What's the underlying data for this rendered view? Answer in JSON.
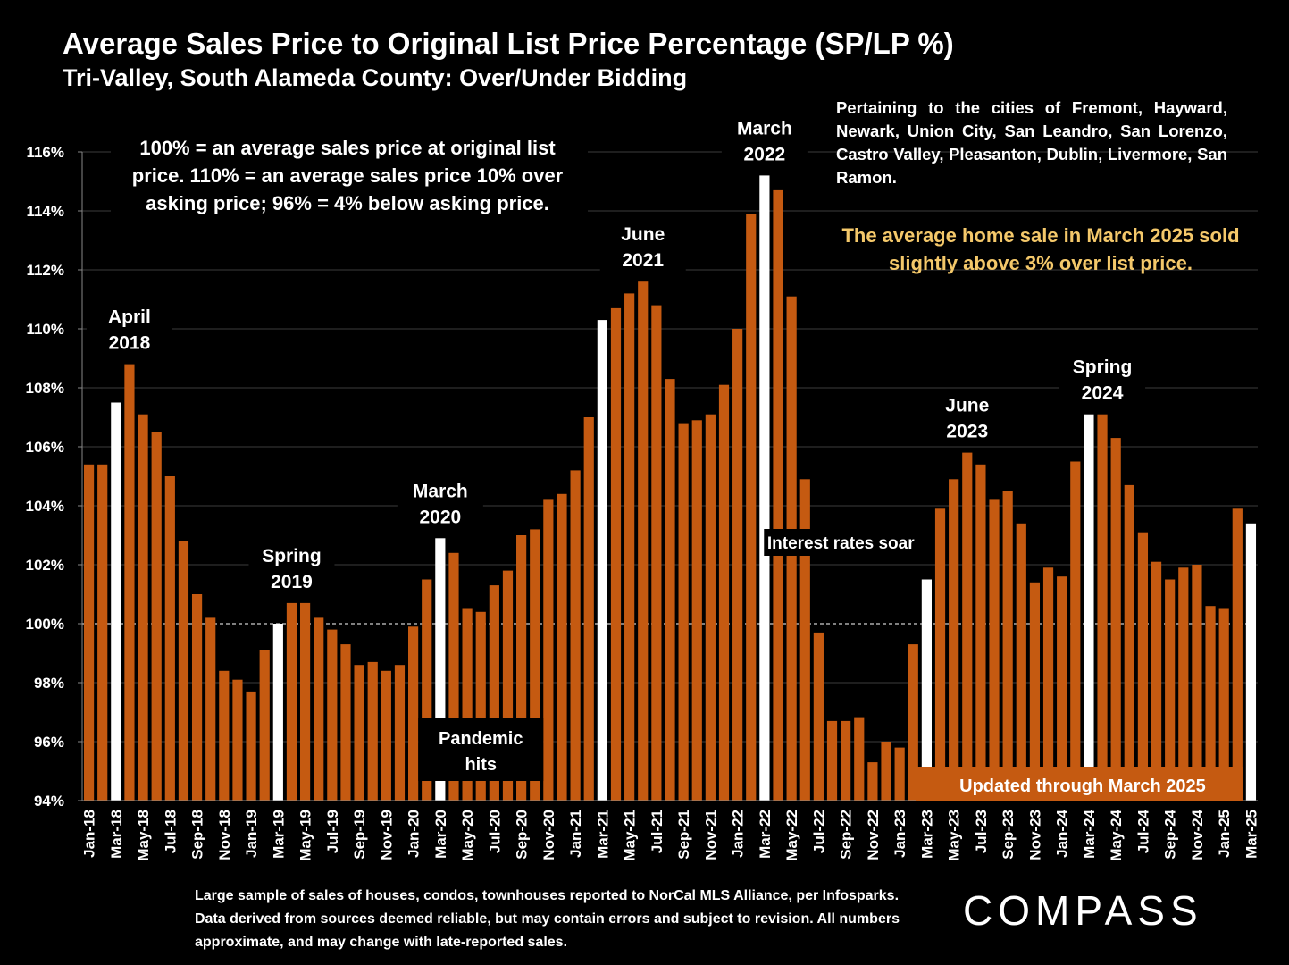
{
  "header": {
    "title": "Average Sales Price to Original List Price Percentage (SP/LP %)",
    "subtitle": "Tri-Valley, South Alameda County:  Over/Under Bidding"
  },
  "cities_note": "Pertaining to the cities of Fremont, Hayward, Newark, Union City, San Leandro, San Lorenzo, Castro Valley, Pleasanton, Dublin, Livermore, San Ramon.",
  "highlight_note": "The average home sale in March 2025 sold slightly above 3% over list price.",
  "footnote": "Large sample of sales of houses, condos, townhouses reported to NorCal MLS Alliance, per Infosparks. Data derived from sources deemed reliable, but may contain errors and subject to revision. All numbers approximate, and may change with late-reported sales.",
  "logo": "COMPASS",
  "colors": {
    "bar": "#c55a11",
    "highlight_bar": "#ffffff",
    "accent_text": "#f4c86a",
    "background": "#000000"
  },
  "chart_data": {
    "type": "bar",
    "title": "",
    "xlabel": "",
    "ylabel": "",
    "ylim": [
      94,
      116
    ],
    "yticks": [
      94,
      96,
      98,
      100,
      102,
      104,
      106,
      108,
      110,
      112,
      114,
      116
    ],
    "ytick_suffix": "%",
    "grid": true,
    "reference_line": 100,
    "categories": [
      "Jan-18",
      "Feb-18",
      "Mar-18",
      "Apr-18",
      "May-18",
      "Jun-18",
      "Jul-18",
      "Aug-18",
      "Sep-18",
      "Oct-18",
      "Nov-18",
      "Dec-18",
      "Jan-19",
      "Feb-19",
      "Mar-19",
      "Apr-19",
      "May-19",
      "Jun-19",
      "Jul-19",
      "Aug-19",
      "Sep-19",
      "Oct-19",
      "Nov-19",
      "Dec-19",
      "Jan-20",
      "Feb-20",
      "Mar-20",
      "Apr-20",
      "May-20",
      "Jun-20",
      "Jul-20",
      "Aug-20",
      "Sep-20",
      "Oct-20",
      "Nov-20",
      "Dec-20",
      "Jan-21",
      "Feb-21",
      "Mar-21",
      "Apr-21",
      "May-21",
      "Jun-21",
      "Jul-21",
      "Aug-21",
      "Sep-21",
      "Oct-21",
      "Nov-21",
      "Dec-21",
      "Jan-22",
      "Feb-22",
      "Mar-22",
      "Apr-22",
      "May-22",
      "Jun-22",
      "Jul-22",
      "Aug-22",
      "Sep-22",
      "Oct-22",
      "Nov-22",
      "Dec-22",
      "Jan-23",
      "Feb-23",
      "Mar-23",
      "Apr-23",
      "May-23",
      "Jun-23",
      "Jul-23",
      "Aug-23",
      "Sep-23",
      "Oct-23",
      "Nov-23",
      "Dec-23",
      "Jan-24",
      "Feb-24",
      "Mar-24",
      "Apr-24",
      "May-24",
      "Jun-24",
      "Jul-24",
      "Aug-24",
      "Sep-24",
      "Oct-24",
      "Nov-24",
      "Dec-24",
      "Jan-25",
      "Feb-25",
      "Mar-25"
    ],
    "values": [
      105.4,
      105.4,
      107.5,
      108.8,
      107.1,
      106.5,
      105.0,
      102.8,
      101.0,
      100.2,
      98.4,
      98.1,
      97.7,
      99.1,
      100.0,
      100.7,
      100.7,
      100.2,
      99.8,
      99.3,
      98.6,
      98.7,
      98.4,
      98.6,
      99.9,
      101.5,
      102.9,
      102.4,
      100.5,
      100.4,
      101.3,
      101.8,
      103.0,
      103.2,
      104.2,
      104.4,
      105.2,
      107.0,
      110.3,
      110.7,
      111.2,
      111.6,
      110.8,
      108.3,
      106.8,
      106.9,
      107.1,
      108.1,
      110.0,
      113.9,
      115.2,
      114.7,
      111.1,
      104.9,
      99.7,
      96.7,
      96.7,
      96.8,
      95.3,
      96.0,
      95.8,
      99.3,
      101.5,
      103.9,
      104.9,
      105.8,
      105.4,
      104.2,
      104.5,
      103.4,
      101.4,
      101.9,
      101.6,
      105.5,
      107.1,
      107.1,
      106.3,
      104.7,
      103.1,
      102.1,
      101.5,
      101.9,
      102.0,
      100.6,
      100.5,
      103.9,
      103.4
    ],
    "highlighted": [
      "Mar-18",
      "Mar-19",
      "Mar-20",
      "Mar-21",
      "Mar-22",
      "Mar-23",
      "Mar-24",
      "Mar-25"
    ],
    "shown_tick_labels": [
      "Jan-18",
      "Mar-18",
      "May-18",
      "Jul-18",
      "Sep-18",
      "Nov-18",
      "Jan-19",
      "Mar-19",
      "May-19",
      "Jul-19",
      "Sep-19",
      "Nov-19",
      "Jan-20",
      "Mar-20",
      "May-20",
      "Jul-20",
      "Sep-20",
      "Nov-20",
      "Jan-21",
      "Mar-21",
      "May-21",
      "Jul-21",
      "Sep-21",
      "Nov-21",
      "Jan-22",
      "Mar-22",
      "May-22",
      "Jul-22",
      "Sep-22",
      "Nov-22",
      "Jan-23",
      "Mar-23",
      "May-23",
      "Jul-23",
      "Sep-23",
      "Nov-23",
      "Jan-24",
      "Mar-24",
      "May-24",
      "Jul-24",
      "Sep-24",
      "Nov-24",
      "Jan-25",
      "Mar-25"
    ],
    "annotations": [
      {
        "lines": [
          "April",
          "2018"
        ],
        "at": "Apr-18",
        "value": 108.8
      },
      {
        "lines": [
          "Spring",
          "2019"
        ],
        "at": "Apr-19",
        "value": 100.7
      },
      {
        "lines": [
          "March",
          "2020"
        ],
        "at": "Mar-20",
        "value": 102.9
      },
      {
        "lines": [
          "June",
          "2021"
        ],
        "at": "Jun-21",
        "value": 111.6
      },
      {
        "lines": [
          "March",
          "2022"
        ],
        "at": "Mar-22",
        "value": 115.2
      },
      {
        "lines": [
          "June",
          "2023"
        ],
        "at": "Jun-23",
        "value": 105.8
      },
      {
        "lines": [
          "Spring",
          "2024"
        ],
        "at": "Apr-24",
        "value": 107.1
      }
    ],
    "explanation_note": [
      "100% = an average sales price at original list",
      "price. 110% = an average sales price 10% over",
      "asking price; 96% = 4% below asking price."
    ],
    "pandemic_note": [
      "Pandemic",
      "hits"
    ],
    "rates_note": "Interest rates soar",
    "updated_note": "Updated through March 2025"
  }
}
